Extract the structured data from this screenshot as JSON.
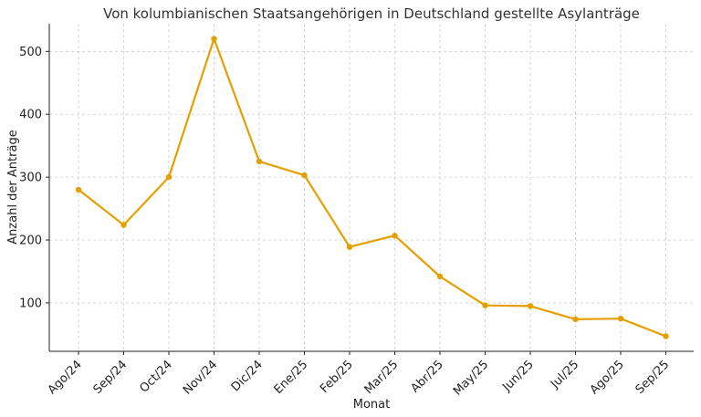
{
  "chart_data": {
    "type": "line",
    "title": "Von kolumbianischen Staatsangehörigen in Deutschland gestellte Asylanträge",
    "xlabel": "Monat",
    "ylabel": "Anzahl der Anträge",
    "categories": [
      "Ago/24",
      "Sep/24",
      "Oct/24",
      "Nov/24",
      "Dic/24",
      "Ene/25",
      "Feb/25",
      "Mar/25",
      "Abr/25",
      "May/25",
      "Jun/25",
      "Jul/25",
      "Ago/25",
      "Sep/25"
    ],
    "series": [
      {
        "values": [
          280,
          224,
          300,
          520,
          325,
          303,
          189,
          207,
          142,
          96,
          95,
          74,
          75,
          47
        ],
        "color": "#E69F00"
      }
    ],
    "yticks": [
      100,
      200,
      300,
      400,
      500
    ],
    "ylim": [
      23,
      544
    ],
    "grid": true,
    "legend": "none"
  }
}
